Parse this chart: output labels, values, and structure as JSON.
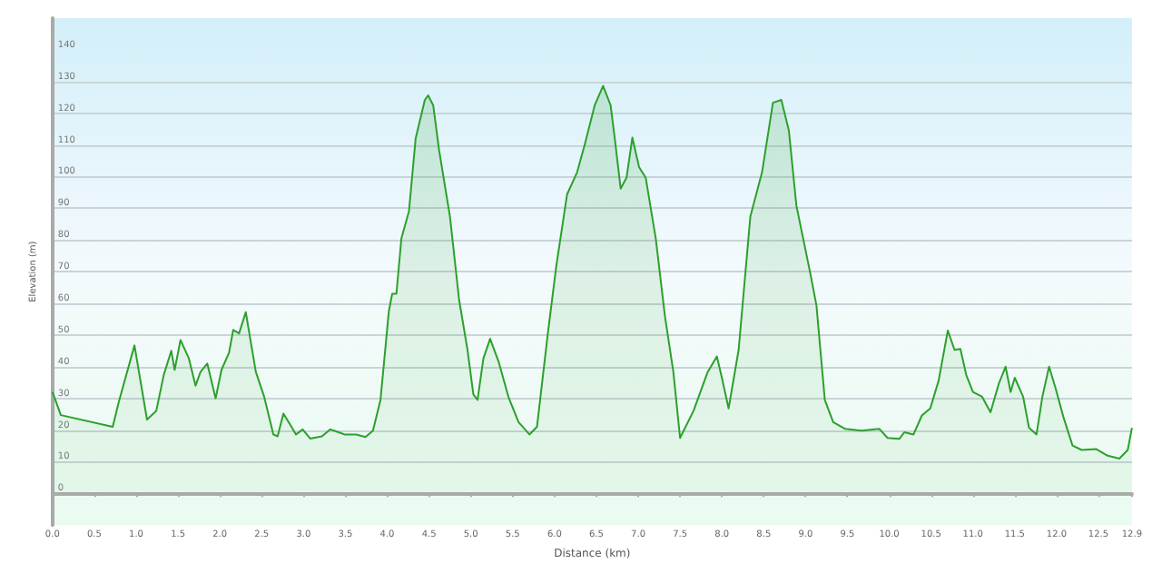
{
  "chart_data": {
    "type": "area",
    "xlabel": "Distance (km)",
    "ylabel": "Elevation (m)",
    "x": [
      0,
      0.1,
      0.72,
      0.79,
      0.98,
      1.13,
      1.24,
      1.33,
      1.42,
      1.46,
      1.53,
      1.63,
      1.71,
      1.77,
      1.85,
      1.95,
      2.02,
      2.11,
      2.16,
      2.23,
      2.31,
      2.43,
      2.53,
      2.64,
      2.69,
      2.76,
      2.84,
      2.91,
      2.99,
      3.08,
      3.22,
      3.32,
      3.42,
      3.49,
      3.63,
      3.74,
      3.83,
      3.92,
      4.02,
      4.06,
      4.11,
      4.17,
      4.26,
      4.34,
      4.45,
      4.49,
      4.55,
      4.62,
      4.75,
      4.86,
      4.96,
      5.03,
      5.08,
      5.15,
      5.23,
      5.33,
      5.45,
      5.57,
      5.7,
      5.79,
      5.92,
      6.02,
      6.15,
      6.27,
      6.36,
      6.48,
      6.58,
      6.67,
      6.72,
      6.79,
      6.86,
      6.93,
      7.01,
      7.09,
      7.21,
      7.32,
      7.42,
      7.5,
      7.66,
      7.83,
      7.94,
      8,
      8.08,
      8.2,
      8.34,
      8.48,
      8.61,
      8.71,
      8.8,
      8.89,
      9.06,
      9.13,
      9.23,
      9.33,
      9.47,
      9.67,
      9.88,
      9.98,
      10.12,
      10.18,
      10.29,
      10.39,
      10.49,
      10.59,
      10.7,
      10.78,
      10.85,
      10.92,
      11,
      11.11,
      11.21,
      11.31,
      11.39,
      11.45,
      11.5,
      11.6,
      11.67,
      11.76,
      11.83,
      11.91,
      11.99,
      12.08,
      12.19,
      12.3,
      12.47,
      12.61,
      12.75,
      12.85,
      12.9
    ],
    "series": [
      {
        "color": "#2ca02c",
        "values": [
          32,
          24.7,
          21,
          28.6,
          46.7,
          23.3,
          26,
          37.4,
          45,
          39,
          48.4,
          42.6,
          34,
          38.4,
          41,
          30,
          39,
          44.4,
          51.6,
          50.5,
          57.2,
          38.4,
          30.5,
          18.6,
          18,
          25.2,
          21.7,
          18.6,
          20.2,
          17.3,
          18,
          20.2,
          19.3,
          18.6,
          18.6,
          17.8,
          19.8,
          29.5,
          57.5,
          63,
          63,
          80.5,
          89,
          112,
          124.2,
          125.6,
          122.5,
          108.4,
          87.4,
          61,
          45.3,
          31.2,
          29.5,
          42.6,
          48.8,
          41.7,
          30.4,
          22.5,
          18.6,
          21,
          50.5,
          71.6,
          94.4,
          101.4,
          110,
          122.5,
          128.6,
          122.5,
          112,
          96.2,
          99.6,
          112.3,
          103,
          99.6,
          80.4,
          55.8,
          38.3,
          17.5,
          26,
          38.3,
          43.2,
          36.5,
          26.8,
          45.3,
          87.4,
          101.4,
          123.3,
          124.2,
          114.6,
          90.9,
          69,
          59.3,
          29.5,
          22.5,
          20.4,
          19.8,
          20.4,
          17.5,
          17.2,
          19.3,
          18.6,
          24.6,
          26.8,
          35.6,
          51.4,
          45.3,
          45.6,
          37.4,
          32,
          30.5,
          25.6,
          34.7,
          40,
          32,
          36.5,
          30.5,
          20.7,
          18.6,
          30.5,
          40,
          33,
          24.2,
          15.1,
          13.7,
          14,
          11.9,
          11,
          13.7,
          20.7
        ]
      }
    ],
    "xlim": [
      0,
      12.9
    ],
    "xticks": [
      {
        "value": 0,
        "label": "0.0"
      },
      {
        "value": 0.5,
        "label": "0.5"
      },
      {
        "value": 1,
        "label": "1.0"
      },
      {
        "value": 1.5,
        "label": "1.5"
      },
      {
        "value": 2,
        "label": "2.0"
      },
      {
        "value": 2.5,
        "label": "2.5"
      },
      {
        "value": 3,
        "label": "3.0"
      },
      {
        "value": 3.5,
        "label": "3.5"
      },
      {
        "value": 4,
        "label": "4.0"
      },
      {
        "value": 4.5,
        "label": "4.5"
      },
      {
        "value": 5,
        "label": "5.0"
      },
      {
        "value": 5.5,
        "label": "5.5"
      },
      {
        "value": 6,
        "label": "6.0"
      },
      {
        "value": 6.5,
        "label": "6.5"
      },
      {
        "value": 7,
        "label": "7.0"
      },
      {
        "value": 7.5,
        "label": "7.5"
      },
      {
        "value": 8,
        "label": "8.0"
      },
      {
        "value": 8.5,
        "label": "8.5"
      },
      {
        "value": 9,
        "label": "9.0"
      },
      {
        "value": 9.5,
        "label": "9.5"
      },
      {
        "value": 10,
        "label": "10.0"
      },
      {
        "value": 10.5,
        "label": "10.5"
      },
      {
        "value": 11,
        "label": "11.0"
      },
      {
        "value": 11.5,
        "label": "11.5"
      },
      {
        "value": 12,
        "label": "12.0"
      },
      {
        "value": 12.5,
        "label": "12.5"
      },
      {
        "value": 12.9,
        "label": "12.9"
      }
    ],
    "ylim": [
      -10,
      150
    ],
    "yticks": [
      0,
      10,
      20,
      30,
      40,
      50,
      60,
      70,
      80,
      90,
      100,
      110,
      120,
      130,
      140
    ],
    "grid": "y",
    "marker": "none",
    "line_style": "solid"
  }
}
